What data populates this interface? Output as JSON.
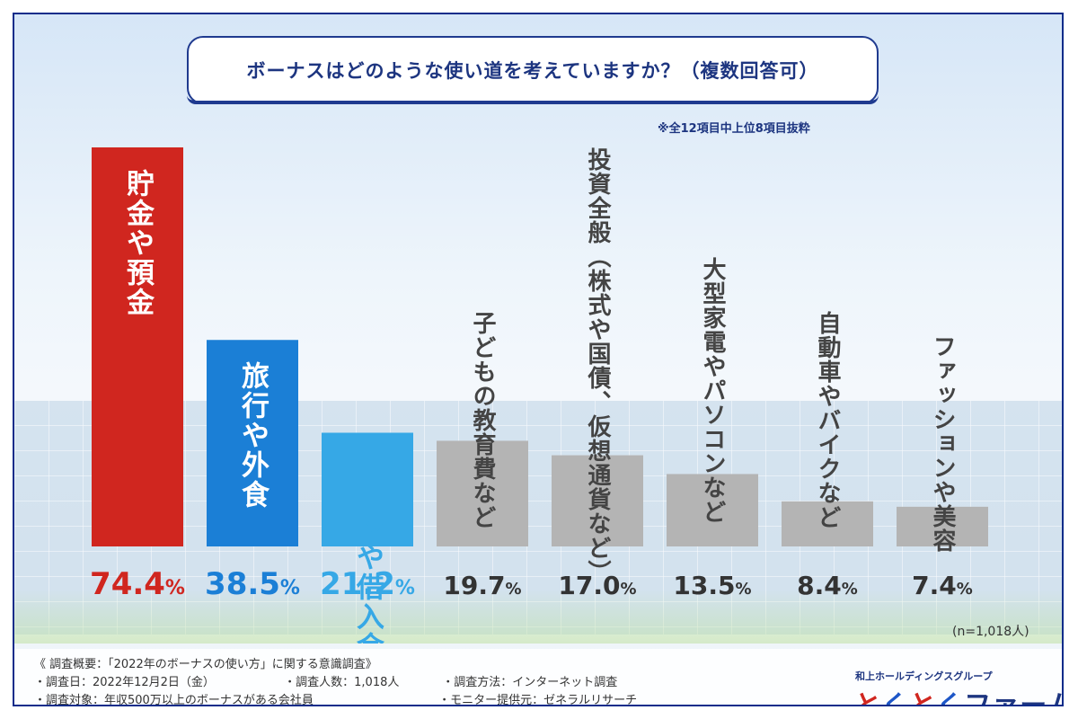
{
  "title": "ボーナスはどのような使い道を考えていますか？（複数回答可）",
  "note": "※全12項目中上位8項目抜粋",
  "n_label": "(n=1,018人)",
  "survey": {
    "heading": "《 調査概要：「2022年のボーナスの使い方」に関する意識調査》",
    "date": "・調査日：2022年12月2日（金）",
    "count": "・調査人数：1,018人",
    "method": "・調査方法：インターネット調査",
    "target": "・調査対象：年収500万以上のボーナスがある会社員",
    "provider": "・モニター提供元：ゼネラルリサーチ"
  },
  "logo": {
    "sub": "和上ホールディングスグループ",
    "part1": "と",
    "part2": "く",
    "part3": "と",
    "part4": "く",
    "part5": "ファーム"
  },
  "colors": {
    "red": "#d0261f",
    "blue": "#1b7fd6",
    "light_blue": "#36a8e6",
    "gray": "#b4b4b4"
  },
  "chart_data": {
    "type": "bar",
    "categories": [
      "貯金や預金",
      "旅行や外食",
      "ローンや借入金の返済",
      "子どもの教育費など",
      "投資全般（株式や国債、仮想通貨など）",
      "大型家電やパソコンなど",
      "自動車やバイクなど",
      "ファッションや美容"
    ],
    "values": [
      74.4,
      38.5,
      21.2,
      19.7,
      17.0,
      13.5,
      8.4,
      7.4
    ],
    "unit": "%",
    "ylim": [
      0,
      80
    ]
  }
}
